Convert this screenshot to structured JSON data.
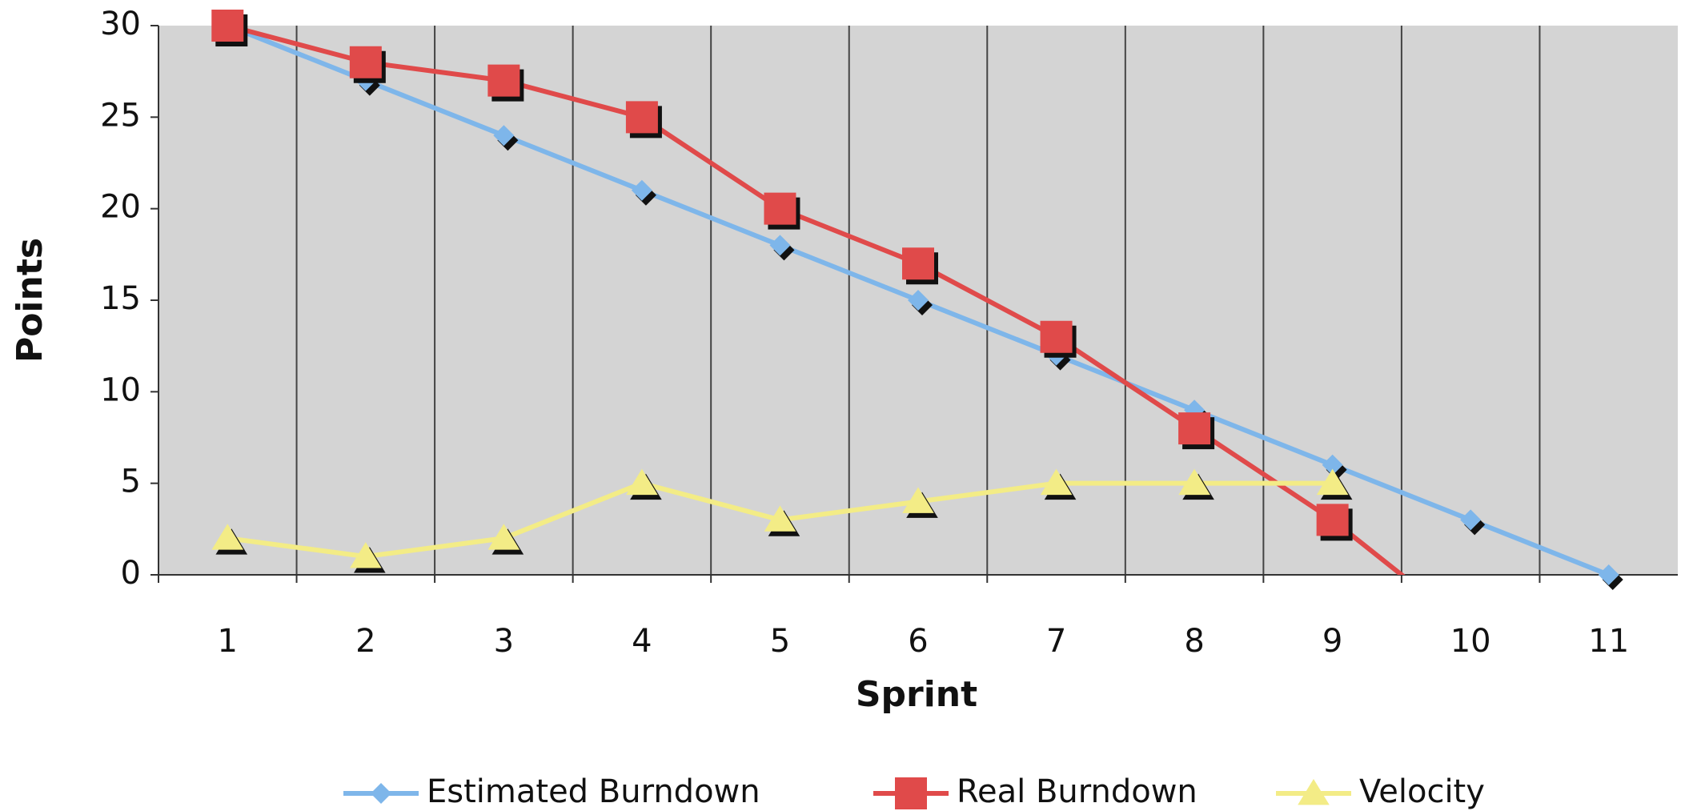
{
  "chart_data": {
    "type": "line",
    "x_label": "Sprint",
    "y_label": "Points",
    "categories": [
      "1",
      "2",
      "3",
      "4",
      "5",
      "6",
      "7",
      "8",
      "9",
      "10",
      "11"
    ],
    "series": [
      {
        "name": "Estimated Burndown",
        "color": "#7eb6ea",
        "marker": "diamond",
        "values": [
          30,
          27,
          24,
          21,
          18,
          15,
          12,
          9,
          6,
          3,
          0
        ]
      },
      {
        "name": "Real Burndown",
        "color": "#e04a4a",
        "marker": "square",
        "values": [
          30,
          28,
          27,
          25,
          20,
          17,
          13,
          8,
          3,
          -3,
          null
        ]
      },
      {
        "name": "Velocity",
        "color": "#f3ec86",
        "marker": "triangle",
        "values": [
          2,
          1,
          2,
          5,
          3,
          4,
          5,
          5,
          5,
          null,
          null
        ]
      }
    ],
    "ylim": [
      0,
      30
    ],
    "yticks": [
      0,
      5,
      10,
      15,
      20,
      25,
      30
    ],
    "grid": true,
    "legend": "bottom"
  }
}
